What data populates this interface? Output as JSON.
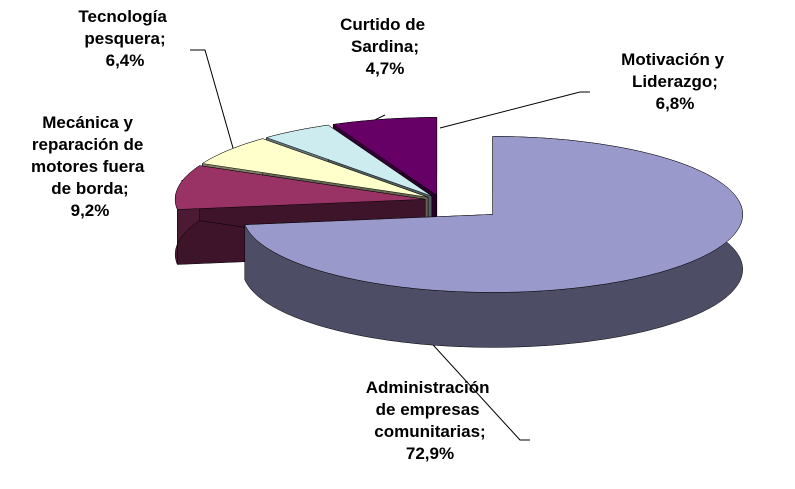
{
  "chart_data": {
    "type": "pie3d",
    "categories": [
      "Administración de empresas comunitarias;",
      "Mecánica y reparación de motores fuera de borda;",
      "Tecnología pesquera;",
      "Curtido de Sardina;",
      "Motivación y Liderazgo;"
    ],
    "values": [
      72.9,
      9.2,
      6.4,
      4.7,
      6.8
    ],
    "value_labels": [
      "72,9%",
      "9,2%",
      "6,4%",
      "4,7%",
      "6,8%"
    ],
    "colors": [
      "#9999cc",
      "#993366",
      "#ffffcc",
      "#ccecf0",
      "#660066"
    ]
  }
}
